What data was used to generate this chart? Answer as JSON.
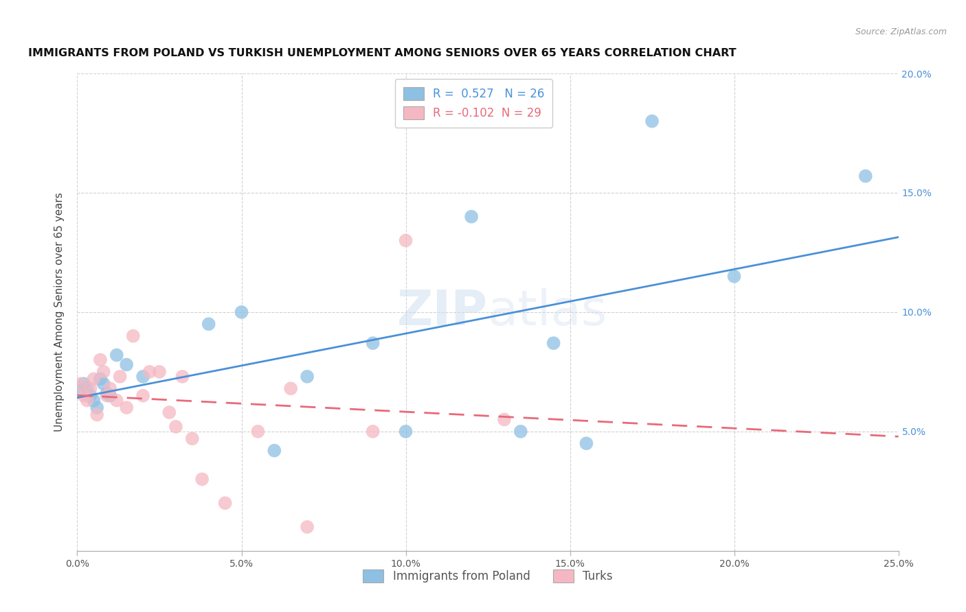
{
  "title": "IMMIGRANTS FROM POLAND VS TURKISH UNEMPLOYMENT AMONG SENIORS OVER 65 YEARS CORRELATION CHART",
  "source": "Source: ZipAtlas.com",
  "ylabel": "Unemployment Among Seniors over 65 years",
  "xlim": [
    0.0,
    0.25
  ],
  "ylim": [
    0.0,
    0.2
  ],
  "xticks": [
    0.0,
    0.05,
    0.1,
    0.15,
    0.2,
    0.25
  ],
  "yticks": [
    0.0,
    0.05,
    0.1,
    0.15,
    0.2
  ],
  "xtick_labels": [
    "0.0%",
    "5.0%",
    "10.0%",
    "15.0%",
    "20.0%",
    "25.0%"
  ],
  "ytick_labels_right": [
    "",
    "5.0%",
    "10.0%",
    "15.0%",
    "20.0%"
  ],
  "legend1_label": "Immigrants from Poland",
  "legend2_label": "Turks",
  "R1": 0.527,
  "N1": 26,
  "R2": -0.102,
  "N2": 29,
  "blue_color": "#8ec0e4",
  "pink_color": "#f5b8c2",
  "line_blue": "#4a90d9",
  "line_pink": "#e8697a",
  "watermark_zip": "ZIP",
  "watermark_atlas": "atlas",
  "blue_points_x": [
    0.001,
    0.002,
    0.003,
    0.004,
    0.005,
    0.006,
    0.007,
    0.008,
    0.009,
    0.01,
    0.012,
    0.015,
    0.02,
    0.04,
    0.05,
    0.06,
    0.07,
    0.09,
    0.1,
    0.12,
    0.135,
    0.145,
    0.155,
    0.175,
    0.2,
    0.24
  ],
  "blue_points_y": [
    0.067,
    0.07,
    0.068,
    0.065,
    0.063,
    0.06,
    0.072,
    0.07,
    0.066,
    0.065,
    0.082,
    0.078,
    0.073,
    0.095,
    0.1,
    0.042,
    0.073,
    0.087,
    0.05,
    0.14,
    0.05,
    0.087,
    0.045,
    0.18,
    0.115,
    0.157
  ],
  "pink_points_x": [
    0.001,
    0.002,
    0.003,
    0.004,
    0.005,
    0.006,
    0.007,
    0.008,
    0.009,
    0.01,
    0.012,
    0.013,
    0.015,
    0.017,
    0.02,
    0.022,
    0.025,
    0.028,
    0.03,
    0.032,
    0.035,
    0.038,
    0.045,
    0.055,
    0.065,
    0.07,
    0.09,
    0.1,
    0.13
  ],
  "pink_points_y": [
    0.07,
    0.065,
    0.063,
    0.068,
    0.072,
    0.057,
    0.08,
    0.075,
    0.065,
    0.068,
    0.063,
    0.073,
    0.06,
    0.09,
    0.065,
    0.075,
    0.075,
    0.058,
    0.052,
    0.073,
    0.047,
    0.03,
    0.02,
    0.05,
    0.068,
    0.01,
    0.05,
    0.13,
    0.055
  ]
}
